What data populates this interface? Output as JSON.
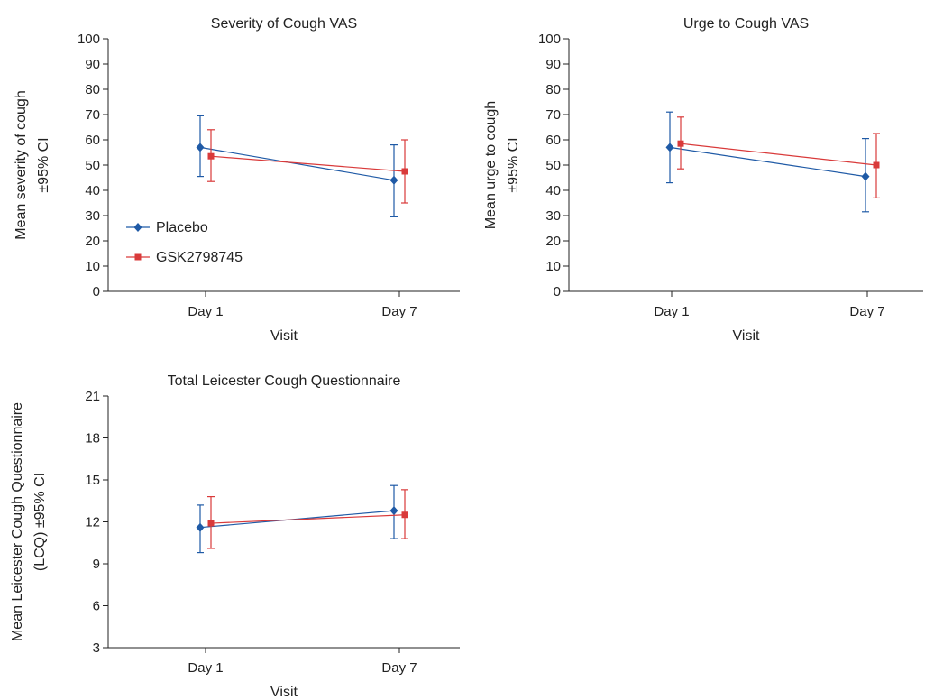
{
  "legend": {
    "placement": "left-middle of first panel",
    "items": [
      {
        "label": "Placebo",
        "color": "#1f5aa6",
        "marker": "diamond"
      },
      {
        "label": "GSK2798745",
        "color": "#d93a3a",
        "marker": "square"
      }
    ]
  },
  "chart_data": [
    {
      "type": "line",
      "title": "Severity of Cough VAS",
      "xlabel": "Visit",
      "ylabel": [
        "Mean severity of cough",
        "±95% CI"
      ],
      "categories": [
        "Day 1",
        "Day 7"
      ],
      "ylim": [
        0,
        100
      ],
      "yticks": [
        0,
        10,
        20,
        30,
        40,
        50,
        60,
        70,
        80,
        90,
        100
      ],
      "grid": false,
      "series": [
        {
          "name": "Placebo",
          "color": "#1f5aa6",
          "marker": "diamond",
          "values": [
            57,
            44
          ],
          "ci_low": [
            45.5,
            29.5
          ],
          "ci_high": [
            69.5,
            58
          ]
        },
        {
          "name": "GSK2798745",
          "color": "#d93a3a",
          "marker": "square",
          "values": [
            53.5,
            47.5
          ],
          "ci_low": [
            43.5,
            35
          ],
          "ci_high": [
            64,
            60
          ]
        }
      ]
    },
    {
      "type": "line",
      "title": "Urge to Cough VAS",
      "xlabel": "Visit",
      "ylabel": [
        "Mean urge to cough",
        "±95% CI"
      ],
      "categories": [
        "Day 1",
        "Day 7"
      ],
      "ylim": [
        0,
        100
      ],
      "yticks": [
        0,
        10,
        20,
        30,
        40,
        50,
        60,
        70,
        80,
        90,
        100
      ],
      "grid": false,
      "series": [
        {
          "name": "Placebo",
          "color": "#1f5aa6",
          "marker": "diamond",
          "values": [
            57,
            45.5
          ],
          "ci_low": [
            43,
            31.5
          ],
          "ci_high": [
            71,
            60.5
          ]
        },
        {
          "name": "GSK2798745",
          "color": "#d93a3a",
          "marker": "square",
          "values": [
            58.5,
            50
          ],
          "ci_low": [
            48.5,
            37
          ],
          "ci_high": [
            69,
            62.5
          ]
        }
      ]
    },
    {
      "type": "line",
      "title": "Total Leicester Cough Questionnaire",
      "xlabel": "Visit",
      "ylabel": [
        "Mean Leicester Cough Questionnaire",
        "(LCQ)  ±95% CI"
      ],
      "categories": [
        "Day 1",
        "Day 7"
      ],
      "ylim": [
        3,
        21
      ],
      "yticks": [
        3,
        6,
        9,
        12,
        15,
        18,
        21
      ],
      "grid": false,
      "series": [
        {
          "name": "Placebo",
          "color": "#1f5aa6",
          "marker": "diamond",
          "values": [
            11.6,
            12.8
          ],
          "ci_low": [
            9.8,
            10.8
          ],
          "ci_high": [
            13.2,
            14.6
          ]
        },
        {
          "name": "GSK2798745",
          "color": "#d93a3a",
          "marker": "square",
          "values": [
            11.9,
            12.5
          ],
          "ci_low": [
            10.1,
            10.8
          ],
          "ci_high": [
            13.8,
            14.3
          ]
        }
      ]
    }
  ]
}
